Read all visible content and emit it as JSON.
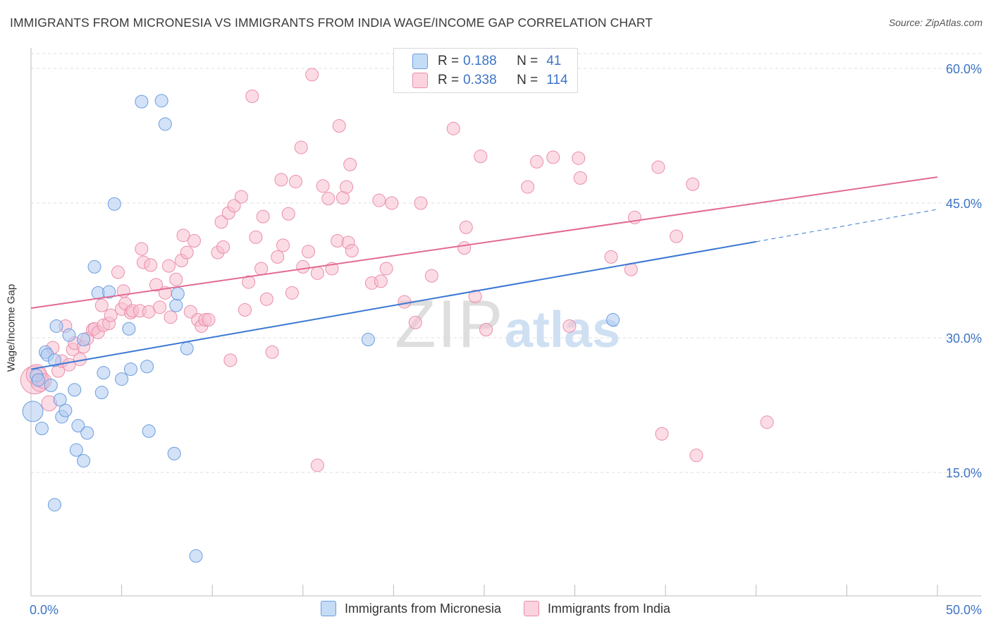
{
  "title": "IMMIGRANTS FROM MICRONESIA VS IMMIGRANTS FROM INDIA WAGE/INCOME GAP CORRELATION CHART",
  "source": "Source: ZipAtlas.com",
  "watermark": {
    "zip": "ZIP",
    "atlas": "atlas"
  },
  "legend": {
    "r_label": "R =",
    "n_label": "N =",
    "rows": [
      {
        "r": "0.188",
        "n": "41"
      },
      {
        "r": "0.338",
        "n": "114"
      }
    ]
  },
  "colors": {
    "micronesia_fill": "#aecbf0",
    "micronesia_stroke": "#6b9de0",
    "micronesia_line": "#3a78d4",
    "india_fill": "#f7bfd0",
    "india_stroke": "#eb8dab",
    "india_line": "#e26a93",
    "tick_label": "#3d74c6"
  },
  "chart_data": {
    "type": "scatter",
    "title": "IMMIGRANTS FROM MICRONESIA VS IMMIGRANTS FROM INDIA WAGE/INCOME GAP CORRELATION CHART",
    "xlabel": "",
    "ylabel": "Wage/Income Gap",
    "xlim": [
      0,
      50
    ],
    "ylim": [
      0,
      62
    ],
    "x_tick_labels": [
      "0.0%",
      "50.0%"
    ],
    "y_ticks": [
      15,
      30,
      45,
      60
    ],
    "y_tick_labels": [
      "15.0%",
      "30.0%",
      "45.0%",
      "60.0%"
    ],
    "grid": true,
    "series": [
      {
        "name": "Immigrants from Micronesia",
        "r": 0.188,
        "n": 41,
        "trend": {
          "x": [
            0,
            40
          ],
          "y": [
            26.5,
            40.7
          ],
          "dashed_to": [
            50,
            44.3
          ]
        },
        "points": [
          [
            0.1,
            21.8,
            1.6
          ],
          [
            0.3,
            25.8,
            1
          ],
          [
            0.4,
            25.3,
            1
          ],
          [
            0.6,
            19.9,
            1
          ],
          [
            0.8,
            28.4,
            1
          ],
          [
            0.9,
            28.1,
            1
          ],
          [
            1.1,
            24.7,
            1
          ],
          [
            1.3,
            27.5,
            1
          ],
          [
            1.4,
            31.3,
            1
          ],
          [
            1.6,
            23.1,
            1
          ],
          [
            1.7,
            21.2,
            1
          ],
          [
            1.9,
            21.9,
            1
          ],
          [
            2.1,
            30.3,
            1
          ],
          [
            2.4,
            24.2,
            1
          ],
          [
            2.5,
            17.5,
            1
          ],
          [
            2.6,
            20.2,
            1
          ],
          [
            2.9,
            16.3,
            1
          ],
          [
            3.1,
            19.4,
            1
          ],
          [
            3.5,
            37.9,
            1
          ],
          [
            3.7,
            35.0,
            1
          ],
          [
            3.9,
            23.9,
            1
          ],
          [
            4.0,
            26.1,
            1
          ],
          [
            4.3,
            35.1,
            1
          ],
          [
            4.6,
            44.9,
            1
          ],
          [
            5.0,
            25.4,
            1
          ],
          [
            5.4,
            31.0,
            1
          ],
          [
            5.5,
            26.5,
            1
          ],
          [
            6.1,
            56.3,
            1
          ],
          [
            6.4,
            26.8,
            1
          ],
          [
            6.5,
            19.6,
            1
          ],
          [
            7.2,
            56.4,
            1
          ],
          [
            7.4,
            53.8,
            1
          ],
          [
            7.9,
            17.1,
            1
          ],
          [
            8.0,
            33.6,
            1
          ],
          [
            8.1,
            34.9,
            1
          ],
          [
            8.6,
            28.8,
            1
          ],
          [
            9.1,
            5.7,
            1
          ],
          [
            18.6,
            29.8,
            1
          ],
          [
            32.1,
            32.0,
            1
          ],
          [
            1.3,
            11.4,
            1
          ],
          [
            2.9,
            29.8,
            1
          ]
        ]
      },
      {
        "name": "Immigrants from India",
        "r": 0.338,
        "n": 114,
        "trend": {
          "x": [
            0,
            50
          ],
          "y": [
            33.3,
            47.9
          ]
        },
        "points": [
          [
            0.2,
            25.3,
            2.2
          ],
          [
            0.3,
            25.9,
            1.6
          ],
          [
            0.5,
            25.0,
            1.4
          ],
          [
            0.7,
            25.2,
            1.2
          ],
          [
            1.0,
            22.7,
            1.2
          ],
          [
            1.2,
            28.9,
            1
          ],
          [
            1.5,
            26.3,
            1
          ],
          [
            1.7,
            27.4,
            1
          ],
          [
            1.9,
            31.3,
            1
          ],
          [
            2.1,
            27.0,
            1
          ],
          [
            2.3,
            28.7,
            1
          ],
          [
            2.4,
            29.4,
            1
          ],
          [
            2.7,
            27.6,
            1
          ],
          [
            2.9,
            29.0,
            1
          ],
          [
            3.1,
            29.9,
            1
          ],
          [
            3.4,
            30.9,
            1
          ],
          [
            3.5,
            31.0,
            1
          ],
          [
            3.7,
            30.6,
            1
          ],
          [
            3.9,
            33.6,
            1
          ],
          [
            4.0,
            31.4,
            1
          ],
          [
            4.3,
            31.6,
            1
          ],
          [
            4.4,
            32.5,
            1
          ],
          [
            4.8,
            37.3,
            1
          ],
          [
            5.0,
            33.2,
            1
          ],
          [
            5.1,
            35.2,
            1
          ],
          [
            5.2,
            33.8,
            1
          ],
          [
            5.5,
            32.8,
            1
          ],
          [
            5.6,
            33.0,
            1
          ],
          [
            6.0,
            33.0,
            1
          ],
          [
            6.1,
            39.9,
            1
          ],
          [
            6.2,
            38.4,
            1
          ],
          [
            6.5,
            32.9,
            1
          ],
          [
            6.6,
            38.1,
            1
          ],
          [
            6.9,
            35.9,
            1
          ],
          [
            7.1,
            33.4,
            1
          ],
          [
            7.4,
            35.0,
            1
          ],
          [
            7.6,
            38.0,
            1
          ],
          [
            7.7,
            32.3,
            1
          ],
          [
            8.0,
            36.5,
            1
          ],
          [
            8.3,
            38.6,
            1
          ],
          [
            8.4,
            41.4,
            1
          ],
          [
            8.6,
            39.5,
            1
          ],
          [
            8.8,
            32.9,
            1
          ],
          [
            9.0,
            40.8,
            1
          ],
          [
            9.2,
            32.0,
            1
          ],
          [
            9.4,
            31.3,
            1
          ],
          [
            9.6,
            32.0,
            1
          ],
          [
            9.8,
            32.0,
            1
          ],
          [
            10.3,
            39.5,
            1
          ],
          [
            10.5,
            42.9,
            1
          ],
          [
            10.6,
            40.1,
            1
          ],
          [
            10.9,
            43.9,
            1
          ],
          [
            11.2,
            44.7,
            1
          ],
          [
            11.0,
            27.5,
            1
          ],
          [
            11.6,
            45.7,
            1
          ],
          [
            11.8,
            33.1,
            1
          ],
          [
            12.0,
            36.2,
            1
          ],
          [
            12.2,
            56.9,
            1
          ],
          [
            12.4,
            41.2,
            1
          ],
          [
            12.7,
            37.7,
            1
          ],
          [
            12.8,
            43.5,
            1
          ],
          [
            13.0,
            34.3,
            1
          ],
          [
            13.3,
            28.4,
            1
          ],
          [
            13.6,
            39.0,
            1
          ],
          [
            13.8,
            47.6,
            1
          ],
          [
            13.9,
            40.3,
            1
          ],
          [
            14.2,
            43.8,
            1
          ],
          [
            14.4,
            35.0,
            1
          ],
          [
            14.6,
            47.4,
            1
          ],
          [
            14.9,
            51.2,
            1
          ],
          [
            15.0,
            37.9,
            1
          ],
          [
            15.3,
            39.6,
            1
          ],
          [
            15.5,
            59.3,
            1
          ],
          [
            15.8,
            37.2,
            1
          ],
          [
            16.1,
            46.9,
            1
          ],
          [
            16.4,
            45.5,
            1
          ],
          [
            16.6,
            37.7,
            1
          ],
          [
            16.9,
            40.8,
            1
          ],
          [
            17.2,
            45.6,
            1
          ],
          [
            17.4,
            46.8,
            1
          ],
          [
            17.5,
            40.6,
            1
          ],
          [
            17.7,
            39.7,
            1
          ],
          [
            17.6,
            49.3,
            1
          ],
          [
            17.0,
            53.6,
            1
          ],
          [
            18.8,
            36.1,
            1
          ],
          [
            19.2,
            45.3,
            1
          ],
          [
            19.3,
            36.3,
            1
          ],
          [
            19.6,
            37.7,
            1
          ],
          [
            19.9,
            45.0,
            1
          ],
          [
            20.6,
            34.0,
            1
          ],
          [
            21.2,
            31.7,
            1
          ],
          [
            21.5,
            45.0,
            1
          ],
          [
            22.1,
            36.9,
            1
          ],
          [
            23.3,
            53.3,
            1
          ],
          [
            23.9,
            40.0,
            1
          ],
          [
            24.0,
            42.3,
            1
          ],
          [
            24.5,
            34.6,
            1
          ],
          [
            24.8,
            50.2,
            1
          ],
          [
            25.1,
            30.9,
            1
          ],
          [
            27.4,
            46.8,
            1
          ],
          [
            27.9,
            49.6,
            1
          ],
          [
            28.8,
            50.1,
            1
          ],
          [
            29.7,
            31.3,
            1
          ],
          [
            30.2,
            50.0,
            1
          ],
          [
            30.3,
            47.8,
            1
          ],
          [
            32.0,
            39.0,
            1
          ],
          [
            33.1,
            37.6,
            1
          ],
          [
            33.3,
            43.4,
            1
          ],
          [
            34.6,
            49.0,
            1
          ],
          [
            34.8,
            19.3,
            1
          ],
          [
            35.6,
            41.3,
            1
          ],
          [
            36.5,
            47.1,
            1
          ],
          [
            36.7,
            16.9,
            1
          ],
          [
            40.6,
            20.6,
            1
          ],
          [
            15.8,
            15.8,
            1
          ]
        ]
      }
    ]
  },
  "bottom_legend": [
    "Immigrants from Micronesia",
    "Immigrants from India"
  ]
}
